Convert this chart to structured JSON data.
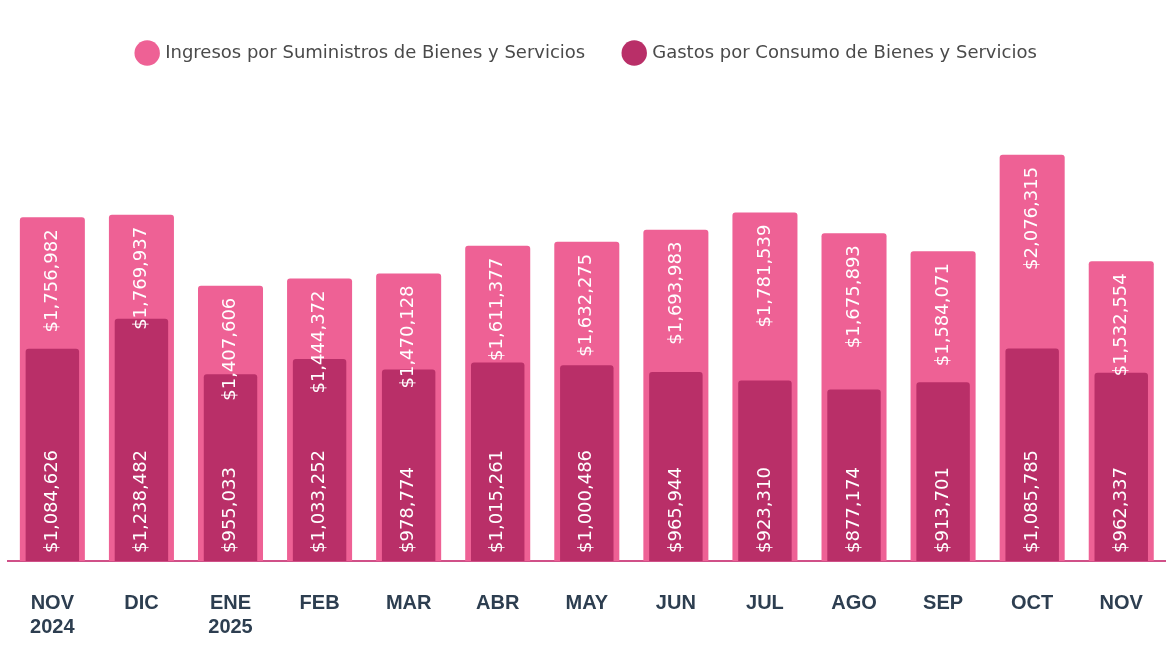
{
  "chart_data": {
    "type": "bar",
    "categories": [
      "NOV 2024",
      "DIC",
      "ENE 2025",
      "FEB",
      "MAR",
      "ABR",
      "MAY",
      "JUN",
      "JUL",
      "AGO",
      "SEP",
      "OCT",
      "NOV"
    ],
    "series": [
      {
        "name": "Ingresos por Suministros de Bienes y Servicios",
        "color": "#ee6195",
        "values": [
          1756982,
          1769937,
          1407606,
          1444372,
          1470128,
          1611377,
          1632275,
          1693983,
          1781539,
          1675893,
          1584071,
          2076315,
          1532554
        ],
        "value_labels": [
          "$1,756,982",
          "$1,769,937",
          "$1,407,606",
          "$1,444,372",
          "$1,470,128",
          "$1,611,377",
          "$1,632,275",
          "$1,693,983",
          "$1,781,539",
          "$1,675,893",
          "$1,584,071",
          "$2,076,315",
          "$1,532,554"
        ]
      },
      {
        "name": "Gastos por Consumo de Bienes y Servicios",
        "color": "#b92f68",
        "values": [
          1084626,
          1238482,
          955033,
          1033252,
          978774,
          1015261,
          1000486,
          965944,
          923310,
          877174,
          913701,
          1085785,
          962337
        ],
        "value_labels": [
          "$1,084,626",
          "$1,238,482",
          "$955,033",
          "$1,033,252",
          "$978,774",
          "$1,015,261",
          "$1,000,486",
          "$965,944",
          "$923,310",
          "$877,174",
          "$913,701",
          "$1,085,785",
          "$962,337"
        ]
      }
    ],
    "legend": "top",
    "grid": false
  }
}
